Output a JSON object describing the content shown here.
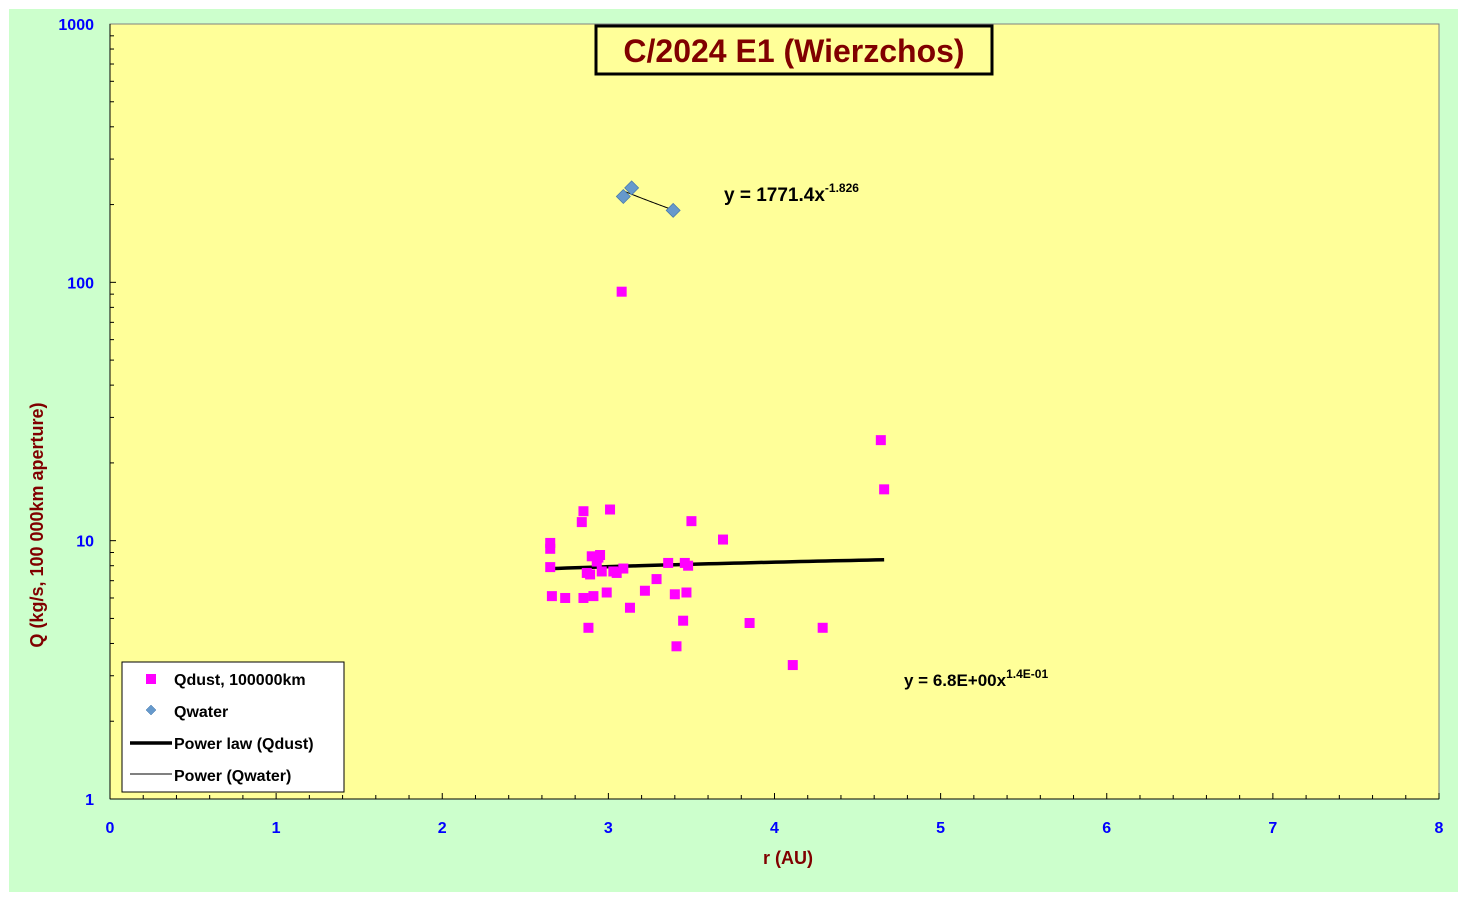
{
  "chart_data": {
    "type": "scatter",
    "title": "C/2024 E1 (Wierzchos)",
    "xlabel": "r (AU)",
    "ylabel": "Q (kg/s, 100 000km aperture)",
    "xlim": [
      0,
      8
    ],
    "ylim": [
      1,
      1000
    ],
    "yscale": "log",
    "x_ticks": [
      "0",
      "1",
      "2",
      "3",
      "4",
      "5",
      "6",
      "7",
      "8"
    ],
    "y_ticks": [
      "1",
      "10",
      "100",
      "1000"
    ],
    "grid": false,
    "legend_position": "bottom-left",
    "series": [
      {
        "name": "Qdust, 100000km",
        "marker": "square",
        "color": "#ff00ff",
        "points": [
          [
            2.65,
            9.8
          ],
          [
            2.65,
            9.3
          ],
          [
            2.65,
            7.9
          ],
          [
            2.66,
            6.1
          ],
          [
            2.74,
            6.0
          ],
          [
            2.84,
            11.8
          ],
          [
            2.85,
            13.0
          ],
          [
            2.85,
            6.0
          ],
          [
            2.87,
            7.5
          ],
          [
            2.88,
            4.6
          ],
          [
            2.89,
            7.4
          ],
          [
            2.9,
            8.7
          ],
          [
            2.91,
            6.1
          ],
          [
            2.93,
            8.3
          ],
          [
            2.94,
            8.6
          ],
          [
            2.95,
            8.8
          ],
          [
            2.96,
            7.6
          ],
          [
            2.99,
            6.3
          ],
          [
            3.01,
            13.2
          ],
          [
            3.03,
            7.6
          ],
          [
            3.05,
            7.5
          ],
          [
            3.09,
            7.8
          ],
          [
            3.08,
            92.0
          ],
          [
            3.13,
            5.5
          ],
          [
            3.22,
            6.4
          ],
          [
            3.29,
            7.1
          ],
          [
            3.36,
            8.2
          ],
          [
            3.4,
            6.2
          ],
          [
            3.41,
            3.9
          ],
          [
            3.45,
            4.9
          ],
          [
            3.46,
            8.2
          ],
          [
            3.47,
            6.3
          ],
          [
            3.48,
            8.0
          ],
          [
            3.5,
            11.9
          ],
          [
            3.69,
            10.1
          ],
          [
            3.85,
            4.8
          ],
          [
            4.11,
            3.3
          ],
          [
            4.29,
            4.6
          ],
          [
            4.64,
            24.5
          ],
          [
            4.66,
            15.8
          ]
        ]
      },
      {
        "name": "Qwater",
        "marker": "diamond",
        "color": "#6699cc",
        "points": [
          [
            3.09,
            215
          ],
          [
            3.14,
            232
          ],
          [
            3.39,
            190
          ]
        ]
      }
    ],
    "trendlines": [
      {
        "name": "Power law (Qdust)",
        "coefficient": 6.8,
        "exponent": 0.14,
        "x_range": [
          2.65,
          4.66
        ],
        "line_weight": "thick",
        "equation": "y = 6.8E+00x",
        "equation_exponent": "1.4E-01"
      },
      {
        "name": "Power (Qwater)",
        "coefficient": 1771.4,
        "exponent": -1.826,
        "x_range": [
          3.09,
          3.39
        ],
        "line_weight": "thin",
        "equation": "y = 1771.4x",
        "equation_exponent": "-1.826"
      }
    ]
  },
  "colors": {
    "outer_background": "#ccffcc",
    "plot_background": "#ffff99",
    "tick_label": "#0000ff",
    "axis_title": "#800000",
    "title_text": "#800000",
    "dust_marker": "#ff00ff",
    "water_marker": "#6699cc"
  }
}
